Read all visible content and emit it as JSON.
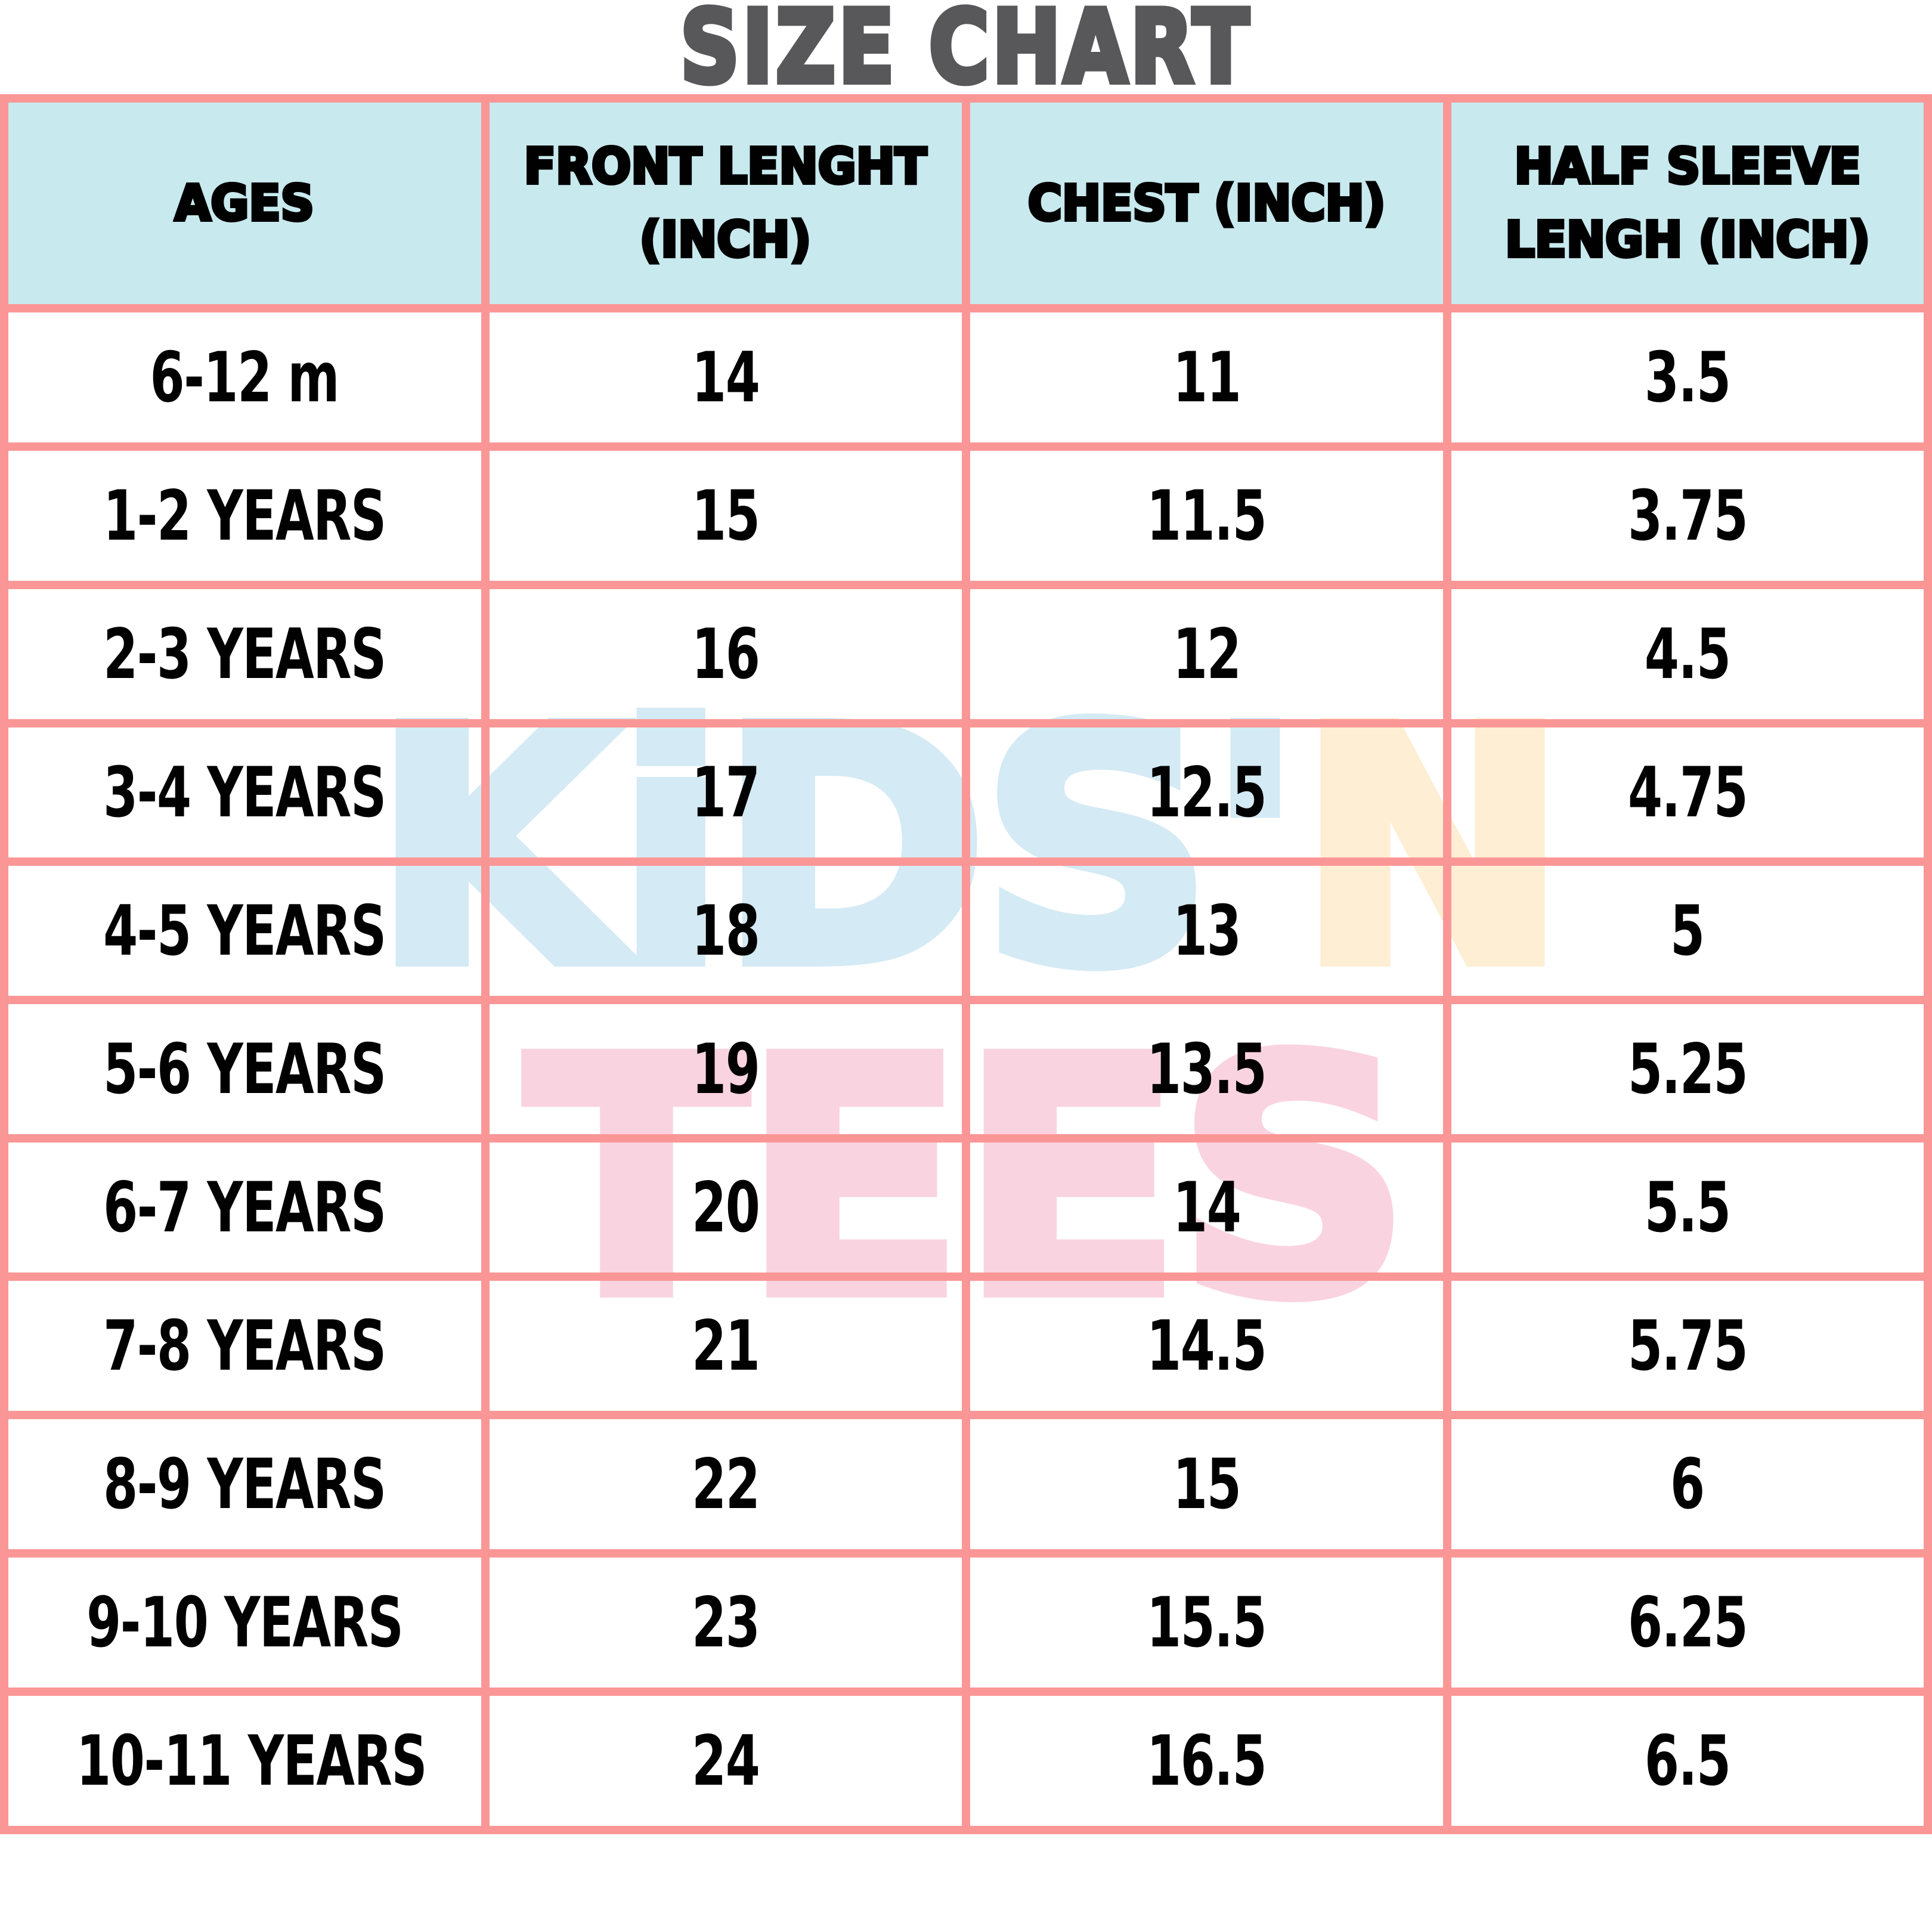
{
  "title": "SIZE CHART",
  "chart_data": {
    "type": "table",
    "title": "SIZE CHART",
    "columns": [
      "AGES",
      "FRONT LENGHT\n(INCH)",
      "CHEST (INCH)",
      "HALF SLEEVE\nLENGH (INCH)"
    ],
    "rows": [
      [
        "6-12 m",
        "14",
        "11",
        "3.5"
      ],
      [
        "1-2 YEARS",
        "15",
        "11.5",
        "3.75"
      ],
      [
        "2-3 YEARS",
        "16",
        "12",
        "4.5"
      ],
      [
        "3-4 YEARS",
        "17",
        "12.5",
        "4.75"
      ],
      [
        "4-5 YEARS",
        "18",
        "13",
        "5"
      ],
      [
        "5-6 YEARS",
        "19",
        "13.5",
        "5.25"
      ],
      [
        "6-7 YEARS",
        "20",
        "14",
        "5.5"
      ],
      [
        "7-8 YEARS",
        "21",
        "14.5",
        "5.75"
      ],
      [
        "8-9 YEARS",
        "22",
        "15",
        "6"
      ],
      [
        "9-10 YEARS",
        "23",
        "15.5",
        "6.25"
      ],
      [
        "10-11 YEARS",
        "24",
        "16.5",
        "6.5"
      ]
    ],
    "layout": {
      "grid": "pink table grid",
      "header_row_background": "#c8e9ee"
    }
  },
  "watermark": {
    "kids": "KiDS'",
    "n": "N",
    "tees": "TEES"
  },
  "colors": {
    "border_pink": "#fb9696",
    "header_bg": "#c8e9ee",
    "title_gray": "#58585a",
    "text_black": "#010101",
    "wm_blue": "#d4eaf4",
    "wm_peach": "#fdeed4",
    "wm_pink": "#fad3e0"
  }
}
